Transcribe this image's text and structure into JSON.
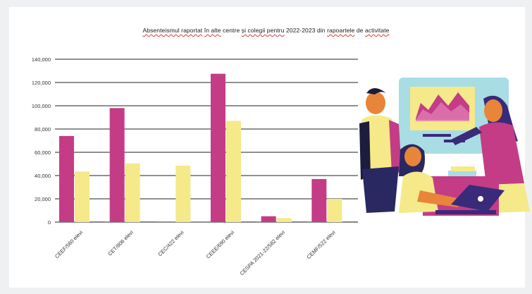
{
  "title_parts": [
    {
      "text": "Absenteismul raportat",
      "u": true
    },
    {
      "text": " ",
      "u": false
    },
    {
      "text": "în alte",
      "u": true
    },
    {
      "text": " centre ",
      "u": false
    },
    {
      "text": "și colegii pentru",
      "u": true
    },
    {
      "text": " 2022-2023 din ",
      "u": false
    },
    {
      "text": "rapoartele",
      "u": true
    },
    {
      "text": " de ",
      "u": false
    },
    {
      "text": "activitate",
      "u": true
    }
  ],
  "colors": {
    "series1": "#c43c86",
    "series2": "#f5e98a",
    "series3": "#5b1e4e",
    "grid": "#222222",
    "text": "#333333"
  },
  "chart_data": {
    "type": "bar",
    "title": "Absenteismul raportat în alte centre și colegii pentru 2022-2023 din rapoartele de activitate",
    "categories": [
      "CEEF/560 elevi",
      "CET/806 elevi",
      "CEC/422 elevi",
      "CEEE/690 elevi",
      "CESPA 2021-22/582 elevi",
      "CEMF/522 elevi"
    ],
    "series": [
      {
        "values": [
          74000,
          98000,
          0,
          127500,
          5000,
          37000
        ]
      },
      {
        "values": [
          43500,
          50500,
          48500,
          87000,
          3500,
          20000
        ]
      },
      {
        "values": [
          400,
          400,
          0,
          400,
          400,
          400
        ]
      }
    ],
    "ylim": [
      0,
      140000
    ],
    "yticks": [
      0,
      20000,
      40000,
      60000,
      80000,
      100000,
      120000,
      140000
    ],
    "ytick_labels": [
      "0",
      "20,000",
      "40,000",
      "60,000",
      "80,000",
      "100,000",
      "120,000",
      "140,000"
    ],
    "grid": true,
    "legend": "none"
  },
  "illustration": {
    "name": "office-team-illustration"
  }
}
